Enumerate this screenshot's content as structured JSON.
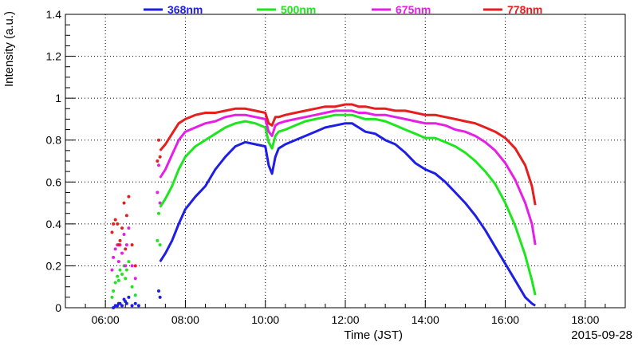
{
  "chart_data": {
    "type": "line",
    "title": "",
    "xlabel": "Time (JST)",
    "ylabel": "Intensity (a.u.)",
    "date": "2015-09-28",
    "xlim": [
      "05:00",
      "19:00"
    ],
    "ylim": [
      0,
      1.4
    ],
    "x_ticks": [
      "06:00",
      "08:00",
      "10:00",
      "12:00",
      "14:00",
      "16:00",
      "18:00"
    ],
    "y_ticks": [
      "0",
      "0.2",
      "0.4",
      "0.6",
      "0.8",
      "1",
      "1.2",
      "1.4"
    ],
    "grid": true,
    "legend_position": "top",
    "x": [
      "07:22",
      "07:30",
      "07:40",
      "07:50",
      "08:00",
      "08:15",
      "08:30",
      "08:45",
      "09:00",
      "09:15",
      "09:30",
      "09:45",
      "10:00",
      "10:05",
      "10:10",
      "10:15",
      "10:20",
      "10:30",
      "10:45",
      "11:00",
      "11:15",
      "11:30",
      "11:45",
      "12:00",
      "12:10",
      "12:20",
      "12:30",
      "12:45",
      "13:00",
      "13:15",
      "13:30",
      "13:45",
      "14:00",
      "14:15",
      "14:30",
      "14:45",
      "15:00",
      "15:15",
      "15:30",
      "15:45",
      "16:00",
      "16:15",
      "16:30",
      "16:40",
      "16:45"
    ],
    "series": [
      {
        "name": "368nm",
        "color": "#1e1ee6",
        "values": [
          0.22,
          0.26,
          0.32,
          0.4,
          0.47,
          0.53,
          0.58,
          0.66,
          0.72,
          0.77,
          0.79,
          0.78,
          0.77,
          0.68,
          0.64,
          0.72,
          0.76,
          0.78,
          0.8,
          0.82,
          0.84,
          0.86,
          0.87,
          0.88,
          0.88,
          0.86,
          0.84,
          0.83,
          0.8,
          0.78,
          0.74,
          0.69,
          0.66,
          0.64,
          0.6,
          0.55,
          0.5,
          0.44,
          0.37,
          0.29,
          0.21,
          0.13,
          0.05,
          0.02,
          0.01
        ]
      },
      {
        "name": "500nm",
        "color": "#1ee61e",
        "values": [
          0.48,
          0.52,
          0.58,
          0.66,
          0.72,
          0.77,
          0.8,
          0.83,
          0.86,
          0.88,
          0.89,
          0.88,
          0.86,
          0.79,
          0.76,
          0.82,
          0.84,
          0.85,
          0.87,
          0.89,
          0.9,
          0.91,
          0.92,
          0.92,
          0.92,
          0.91,
          0.9,
          0.9,
          0.89,
          0.87,
          0.85,
          0.83,
          0.81,
          0.81,
          0.79,
          0.77,
          0.74,
          0.7,
          0.65,
          0.59,
          0.5,
          0.39,
          0.25,
          0.13,
          0.06
        ]
      },
      {
        "name": "675nm",
        "color": "#e61ee6",
        "values": [
          0.62,
          0.66,
          0.73,
          0.8,
          0.84,
          0.86,
          0.88,
          0.89,
          0.91,
          0.92,
          0.92,
          0.91,
          0.9,
          0.84,
          0.82,
          0.87,
          0.88,
          0.89,
          0.9,
          0.91,
          0.92,
          0.93,
          0.94,
          0.94,
          0.94,
          0.93,
          0.93,
          0.92,
          0.92,
          0.91,
          0.9,
          0.89,
          0.88,
          0.88,
          0.87,
          0.85,
          0.84,
          0.82,
          0.79,
          0.75,
          0.69,
          0.61,
          0.5,
          0.4,
          0.3
        ]
      },
      {
        "name": "778nm",
        "color": "#e61e1e",
        "values": [
          0.75,
          0.78,
          0.83,
          0.88,
          0.9,
          0.92,
          0.93,
          0.93,
          0.94,
          0.95,
          0.95,
          0.94,
          0.93,
          0.88,
          0.87,
          0.91,
          0.91,
          0.92,
          0.93,
          0.94,
          0.95,
          0.96,
          0.96,
          0.97,
          0.97,
          0.96,
          0.96,
          0.95,
          0.95,
          0.94,
          0.94,
          0.93,
          0.92,
          0.92,
          0.91,
          0.9,
          0.89,
          0.88,
          0.86,
          0.84,
          0.81,
          0.76,
          0.68,
          0.58,
          0.49
        ]
      }
    ],
    "scatter_early": [
      {
        "name": "368nm",
        "x": [
          "06:12",
          "06:15",
          "06:18",
          "06:20",
          "06:22",
          "06:25",
          "06:28",
          "06:30",
          "06:32",
          "06:35",
          "06:40",
          "06:45",
          "06:50",
          "07:20",
          "07:22"
        ],
        "values": [
          0.0,
          0.01,
          0.01,
          0.02,
          0.02,
          0.01,
          0.04,
          0.03,
          0.02,
          0.05,
          0.01,
          0.02,
          0.01,
          0.08,
          0.05
        ]
      },
      {
        "name": "500nm",
        "x": [
          "06:10",
          "06:12",
          "06:15",
          "06:18",
          "06:20",
          "06:22",
          "06:25",
          "06:28",
          "06:30",
          "06:32",
          "06:35",
          "06:40",
          "06:45",
          "07:18",
          "07:20",
          "07:22"
        ],
        "values": [
          0.05,
          0.08,
          0.12,
          0.15,
          0.13,
          0.18,
          0.16,
          0.2,
          0.14,
          0.18,
          0.22,
          0.1,
          0.06,
          0.32,
          0.45,
          0.3
        ]
      },
      {
        "name": "675nm",
        "x": [
          "06:10",
          "06:12",
          "06:15",
          "06:18",
          "06:20",
          "06:22",
          "06:25",
          "06:28",
          "06:30",
          "06:32",
          "06:35",
          "06:40",
          "06:45",
          "07:18",
          "07:20",
          "07:22"
        ],
        "values": [
          0.18,
          0.24,
          0.28,
          0.3,
          0.22,
          0.3,
          0.26,
          0.35,
          0.2,
          0.3,
          0.38,
          0.2,
          0.14,
          0.55,
          0.68,
          0.5
        ]
      },
      {
        "name": "778nm",
        "x": [
          "06:10",
          "06:12",
          "06:15",
          "06:18",
          "06:20",
          "06:22",
          "06:25",
          "06:28",
          "06:30",
          "06:32",
          "06:35",
          "06:40",
          "06:45",
          "07:18",
          "07:20",
          "07:22"
        ],
        "values": [
          0.36,
          0.4,
          0.42,
          0.4,
          0.3,
          0.32,
          0.38,
          0.5,
          0.28,
          0.44,
          0.53,
          0.3,
          0.2,
          0.7,
          0.8,
          0.72
        ]
      }
    ]
  }
}
